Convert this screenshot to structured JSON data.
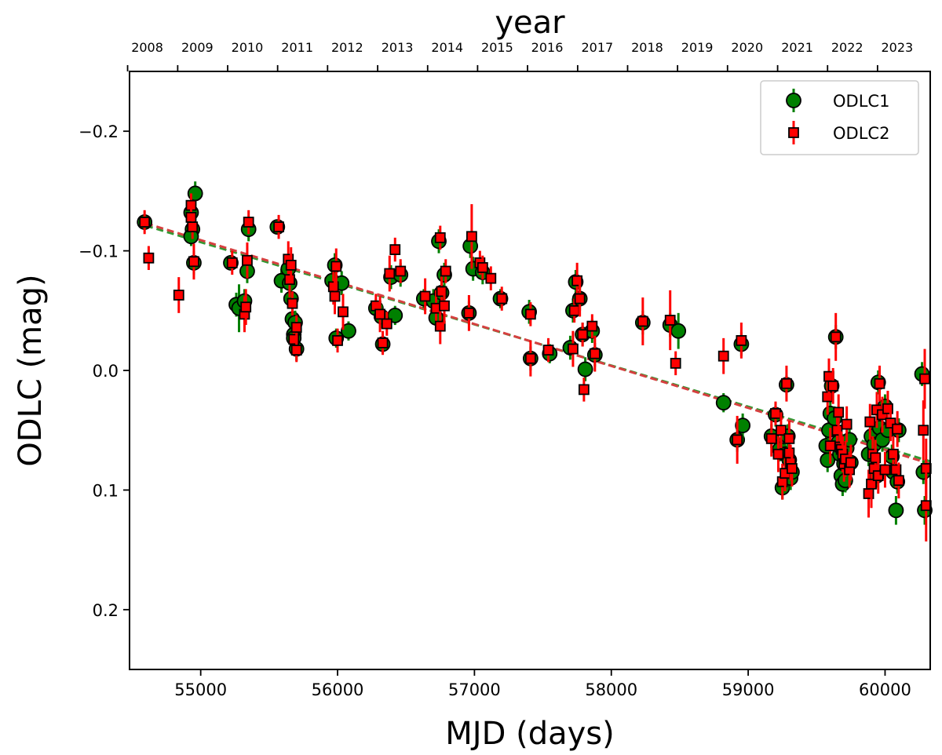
{
  "chart_data": {
    "type": "scatter",
    "title": "",
    "xlabel": "MJD (days)",
    "ylabel": "ODLC (mag)",
    "top_axis_label": "year",
    "xlim": [
      54480,
      60330
    ],
    "ylim": [
      0.25,
      -0.25
    ],
    "y_inverted": true,
    "grid": false,
    "legend_position": "top-right",
    "x_ticks": [
      55000,
      56000,
      57000,
      58000,
      59000,
      60000
    ],
    "x_tick_labels": [
      "55000",
      "56000",
      "57000",
      "58000",
      "59000",
      "60000"
    ],
    "y_ticks": [
      -0.2,
      -0.1,
      0.0,
      0.1,
      0.2
    ],
    "y_tick_labels": [
      "−0.2",
      "−0.1",
      "0.0",
      "0.1",
      "0.2"
    ],
    "top_ticks": [
      54466,
      54832,
      55197,
      55562,
      55927,
      56293,
      56658,
      57023,
      57388,
      57754,
      58119,
      58484,
      58849,
      59215,
      59580,
      59945
    ],
    "top_tick_labels": [
      "2008",
      "2009",
      "2010",
      "2011",
      "2012",
      "2013",
      "2014",
      "2015",
      "2016",
      "2017",
      "2018",
      "2019",
      "2020",
      "2021",
      "2022",
      "2023"
    ],
    "series": [
      {
        "name": "ODLC1",
        "marker": "circle",
        "face_color": "#008000",
        "error_color": "#008000",
        "points": [
          [
            54590,
            -0.124,
            0.006
          ],
          [
            54930,
            -0.132,
            0.008
          ],
          [
            54940,
            -0.118,
            0.008
          ],
          [
            54930,
            -0.112,
            0.008
          ],
          [
            54960,
            -0.148,
            0.01
          ],
          [
            54950,
            -0.09,
            0.01
          ],
          [
            55220,
            -0.09,
            0.006
          ],
          [
            55260,
            -0.055,
            0.01
          ],
          [
            55280,
            -0.052,
            0.02
          ],
          [
            55320,
            -0.058,
            0.01
          ],
          [
            55340,
            -0.083,
            0.01
          ],
          [
            55350,
            -0.118,
            0.01
          ],
          [
            55560,
            -0.12,
            0.006
          ],
          [
            55590,
            -0.075,
            0.01
          ],
          [
            55640,
            -0.085,
            0.008
          ],
          [
            55650,
            -0.073,
            0.01
          ],
          [
            55660,
            -0.06,
            0.008
          ],
          [
            55670,
            -0.043,
            0.008
          ],
          [
            55680,
            -0.03,
            0.01
          ],
          [
            55690,
            -0.04,
            0.01
          ],
          [
            55700,
            -0.018,
            0.01
          ],
          [
            55680,
            -0.027,
            0.008
          ],
          [
            55960,
            -0.075,
            0.008
          ],
          [
            55980,
            -0.088,
            0.01
          ],
          [
            55990,
            -0.027,
            0.008
          ],
          [
            56030,
            -0.073,
            0.01
          ],
          [
            56080,
            -0.033,
            0.008
          ],
          [
            56280,
            -0.052,
            0.008
          ],
          [
            56320,
            -0.045,
            0.01
          ],
          [
            56330,
            -0.022,
            0.008
          ],
          [
            56390,
            -0.078,
            0.01
          ],
          [
            56420,
            -0.046,
            0.008
          ],
          [
            56460,
            -0.08,
            0.01
          ],
          [
            56630,
            -0.06,
            0.008
          ],
          [
            56700,
            -0.058,
            0.01
          ],
          [
            56720,
            -0.044,
            0.01
          ],
          [
            56740,
            -0.108,
            0.01
          ],
          [
            56760,
            -0.065,
            0.01
          ],
          [
            56780,
            -0.08,
            0.01
          ],
          [
            56960,
            -0.048,
            0.01
          ],
          [
            56970,
            -0.104,
            0.01
          ],
          [
            56990,
            -0.085,
            0.01
          ],
          [
            57060,
            -0.082,
            0.01
          ],
          [
            57190,
            -0.06,
            0.008
          ],
          [
            57400,
            -0.049,
            0.01
          ],
          [
            57410,
            -0.01,
            0.01
          ],
          [
            57550,
            -0.014,
            0.008
          ],
          [
            57700,
            -0.019,
            0.01
          ],
          [
            57720,
            -0.05,
            0.01
          ],
          [
            57740,
            -0.074,
            0.01
          ],
          [
            57770,
            -0.06,
            0.01
          ],
          [
            57790,
            -0.03,
            0.01
          ],
          [
            57810,
            -0.001,
            0.01
          ],
          [
            57860,
            -0.033,
            0.01
          ],
          [
            57880,
            -0.013,
            0.01
          ],
          [
            58230,
            -0.04,
            0.01
          ],
          [
            58430,
            -0.038,
            0.01
          ],
          [
            58490,
            -0.033,
            0.015
          ],
          [
            58820,
            0.027,
            0.008
          ],
          [
            58920,
            0.058,
            0.01
          ],
          [
            58950,
            -0.022,
            0.01
          ],
          [
            58960,
            0.046,
            0.01
          ],
          [
            59170,
            0.055,
            0.01
          ],
          [
            59200,
            0.037,
            0.01
          ],
          [
            59230,
            0.066,
            0.01
          ],
          [
            59250,
            0.098,
            0.01
          ],
          [
            59270,
            0.07,
            0.01
          ],
          [
            59280,
            0.012,
            0.008
          ],
          [
            59290,
            0.055,
            0.01
          ],
          [
            59300,
            0.075,
            0.01
          ],
          [
            59310,
            0.09,
            0.01
          ],
          [
            59320,
            0.085,
            0.01
          ],
          [
            59570,
            0.063,
            0.01
          ],
          [
            59580,
            0.075,
            0.01
          ],
          [
            59590,
            0.05,
            0.01
          ],
          [
            59600,
            0.036,
            0.01
          ],
          [
            59610,
            0.013,
            0.008
          ],
          [
            59630,
            0.04,
            0.01
          ],
          [
            59640,
            -0.028,
            0.01
          ],
          [
            59660,
            0.06,
            0.01
          ],
          [
            59670,
            0.07,
            0.01
          ],
          [
            59680,
            0.088,
            0.01
          ],
          [
            59690,
            0.095,
            0.01
          ],
          [
            59700,
            0.078,
            0.01
          ],
          [
            59710,
            0.092,
            0.01
          ],
          [
            59720,
            0.065,
            0.01
          ],
          [
            59740,
            0.058,
            0.01
          ],
          [
            59750,
            0.077,
            0.01
          ],
          [
            59880,
            0.07,
            0.01
          ],
          [
            59900,
            0.055,
            0.01
          ],
          [
            59920,
            0.062,
            0.01
          ],
          [
            59940,
            0.088,
            0.01
          ],
          [
            59950,
            0.01,
            0.01
          ],
          [
            59960,
            0.048,
            0.01
          ],
          [
            59980,
            0.058,
            0.01
          ],
          [
            60000,
            0.03,
            0.01
          ],
          [
            60020,
            0.05,
            0.01
          ],
          [
            60050,
            0.072,
            0.01
          ],
          [
            60060,
            0.085,
            0.01
          ],
          [
            60080,
            0.117,
            0.012
          ],
          [
            60090,
            0.093,
            0.01
          ],
          [
            60100,
            0.05,
            0.01
          ],
          [
            60270,
            0.003,
            0.01
          ],
          [
            60280,
            0.085,
            0.01
          ],
          [
            60290,
            0.117,
            0.012
          ]
        ]
      },
      {
        "name": "ODLC2",
        "marker": "square",
        "face_color": "#ff0000",
        "error_color": "#ff0000",
        "points": [
          [
            54590,
            -0.124,
            0.01
          ],
          [
            54620,
            -0.094,
            0.01
          ],
          [
            54840,
            -0.063,
            0.015
          ],
          [
            54930,
            -0.138,
            0.01
          ],
          [
            54930,
            -0.128,
            0.01
          ],
          [
            54940,
            -0.12,
            0.01
          ],
          [
            54950,
            -0.091,
            0.015
          ],
          [
            55230,
            -0.09,
            0.01
          ],
          [
            55320,
            -0.047,
            0.015
          ],
          [
            55330,
            -0.053,
            0.015
          ],
          [
            55340,
            -0.092,
            0.015
          ],
          [
            55350,
            -0.124,
            0.01
          ],
          [
            55570,
            -0.12,
            0.01
          ],
          [
            55640,
            -0.093,
            0.015
          ],
          [
            55650,
            -0.076,
            0.015
          ],
          [
            55660,
            -0.088,
            0.015
          ],
          [
            55670,
            -0.056,
            0.01
          ],
          [
            55680,
            -0.026,
            0.01
          ],
          [
            55700,
            -0.036,
            0.01
          ],
          [
            55700,
            -0.017,
            0.01
          ],
          [
            55970,
            -0.07,
            0.015
          ],
          [
            55980,
            -0.062,
            0.015
          ],
          [
            55990,
            -0.087,
            0.015
          ],
          [
            56000,
            -0.025,
            0.01
          ],
          [
            56040,
            -0.049,
            0.015
          ],
          [
            56280,
            -0.054,
            0.01
          ],
          [
            56310,
            -0.047,
            0.015
          ],
          [
            56330,
            -0.023,
            0.01
          ],
          [
            56360,
            -0.039,
            0.01
          ],
          [
            56380,
            -0.081,
            0.015
          ],
          [
            56420,
            -0.101,
            0.01
          ],
          [
            56460,
            -0.083,
            0.01
          ],
          [
            56640,
            -0.062,
            0.015
          ],
          [
            56720,
            -0.052,
            0.015
          ],
          [
            56750,
            -0.111,
            0.01
          ],
          [
            56750,
            -0.037,
            0.015
          ],
          [
            56760,
            -0.066,
            0.015
          ],
          [
            56780,
            -0.054,
            0.015
          ],
          [
            56790,
            -0.083,
            0.01
          ],
          [
            56960,
            -0.048,
            0.015
          ],
          [
            56980,
            -0.112,
            0.027
          ],
          [
            57040,
            -0.09,
            0.01
          ],
          [
            57060,
            -0.086,
            0.01
          ],
          [
            57120,
            -0.077,
            0.01
          ],
          [
            57200,
            -0.06,
            0.01
          ],
          [
            57410,
            -0.047,
            0.01
          ],
          [
            57410,
            -0.01,
            0.015
          ],
          [
            57540,
            -0.017,
            0.01
          ],
          [
            57720,
            -0.018,
            0.015
          ],
          [
            57730,
            -0.05,
            0.01
          ],
          [
            57750,
            -0.075,
            0.015
          ],
          [
            57770,
            -0.06,
            0.015
          ],
          [
            57790,
            -0.03,
            0.01
          ],
          [
            57800,
            0.016,
            0.01
          ],
          [
            57860,
            -0.037,
            0.01
          ],
          [
            57880,
            -0.014,
            0.015
          ],
          [
            58230,
            -0.041,
            0.02
          ],
          [
            58430,
            -0.042,
            0.025
          ],
          [
            58470,
            -0.006,
            0.01
          ],
          [
            58820,
            -0.012,
            0.015
          ],
          [
            58920,
            0.058,
            0.02
          ],
          [
            58950,
            -0.025,
            0.015
          ],
          [
            59170,
            0.057,
            0.015
          ],
          [
            59200,
            0.036,
            0.01
          ],
          [
            59220,
            0.07,
            0.015
          ],
          [
            59240,
            0.05,
            0.015
          ],
          [
            59250,
            0.093,
            0.015
          ],
          [
            59270,
            0.086,
            0.015
          ],
          [
            59280,
            0.011,
            0.015
          ],
          [
            59300,
            0.069,
            0.015
          ],
          [
            59300,
            0.057,
            0.015
          ],
          [
            59310,
            0.077,
            0.015
          ],
          [
            59320,
            0.082,
            0.015
          ],
          [
            59580,
            0.022,
            0.015
          ],
          [
            59590,
            0.005,
            0.015
          ],
          [
            59600,
            0.063,
            0.015
          ],
          [
            59620,
            0.013,
            0.015
          ],
          [
            59640,
            -0.028,
            0.02
          ],
          [
            59650,
            0.05,
            0.015
          ],
          [
            59660,
            0.035,
            0.015
          ],
          [
            59670,
            0.064,
            0.015
          ],
          [
            59680,
            0.066,
            0.015
          ],
          [
            59690,
            0.07,
            0.015
          ],
          [
            59700,
            0.078,
            0.015
          ],
          [
            59710,
            0.074,
            0.015
          ],
          [
            59720,
            0.045,
            0.015
          ],
          [
            59740,
            0.083,
            0.015
          ],
          [
            59750,
            0.077,
            0.015
          ],
          [
            59880,
            0.103,
            0.02
          ],
          [
            59890,
            0.043,
            0.015
          ],
          [
            59900,
            0.095,
            0.02
          ],
          [
            59910,
            0.07,
            0.015
          ],
          [
            59920,
            0.082,
            0.015
          ],
          [
            59930,
            0.073,
            0.015
          ],
          [
            59940,
            0.033,
            0.015
          ],
          [
            59950,
            0.088,
            0.015
          ],
          [
            59960,
            0.011,
            0.015
          ],
          [
            59980,
            0.037,
            0.015
          ],
          [
            60000,
            0.083,
            0.015
          ],
          [
            60020,
            0.032,
            0.015
          ],
          [
            60040,
            0.044,
            0.015
          ],
          [
            60060,
            0.07,
            0.015
          ],
          [
            60080,
            0.083,
            0.015
          ],
          [
            60090,
            0.049,
            0.015
          ],
          [
            60100,
            0.092,
            0.015
          ],
          [
            60280,
            0.05,
            0.025
          ],
          [
            60290,
            0.007,
            0.025
          ],
          [
            60300,
            0.082,
            0.025
          ],
          [
            60300,
            0.113,
            0.03
          ]
        ]
      }
    ],
    "fit_lines": [
      {
        "name": "ODLC1 fit",
        "color": "#339933",
        "style": "dashed",
        "x": [
          54600,
          60330
        ],
        "y": [
          -0.121,
          0.076
        ]
      },
      {
        "name": "ODLC2 fit",
        "color": "#d64040",
        "style": "dashed",
        "x": [
          54600,
          60330
        ],
        "y": [
          -0.123,
          0.078
        ]
      }
    ],
    "legend": [
      {
        "label": "ODLC1",
        "marker": "circle",
        "face_color": "#008000",
        "error_color": "#008000"
      },
      {
        "label": "ODLC2",
        "marker": "square",
        "face_color": "#ff0000",
        "error_color": "#ff0000"
      }
    ]
  }
}
